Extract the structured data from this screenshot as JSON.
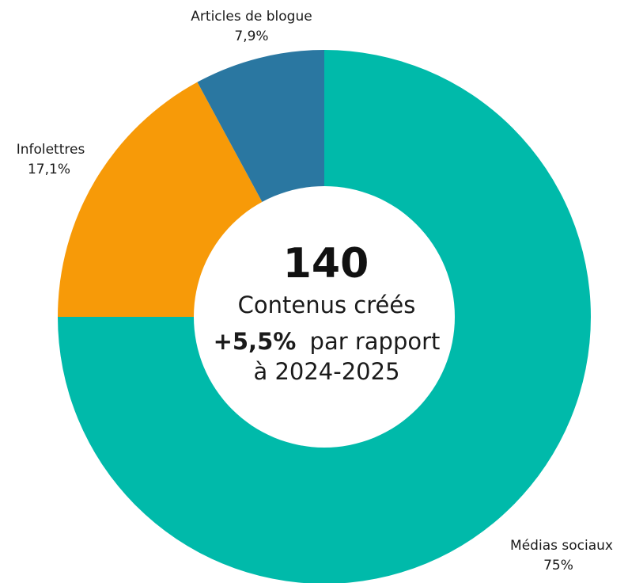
{
  "chart_data": {
    "type": "pie",
    "donut": true,
    "total": "140",
    "center_label": "Contenus créés",
    "change_value": "+5,5%",
    "change_text_1": "par rapport",
    "change_text_2": "à 2024-2025",
    "slices": [
      {
        "label": "Médias sociaux",
        "value": 75,
        "value_label": "75%",
        "color": "#00BAAA"
      },
      {
        "label": "Infolettres",
        "value": 17.1,
        "value_label": "17,1%",
        "color": "#F79A08"
      },
      {
        "label": "Articles de blogue",
        "value": 7.9,
        "value_label": "7,9%",
        "color": "#2A77A1"
      }
    ]
  }
}
